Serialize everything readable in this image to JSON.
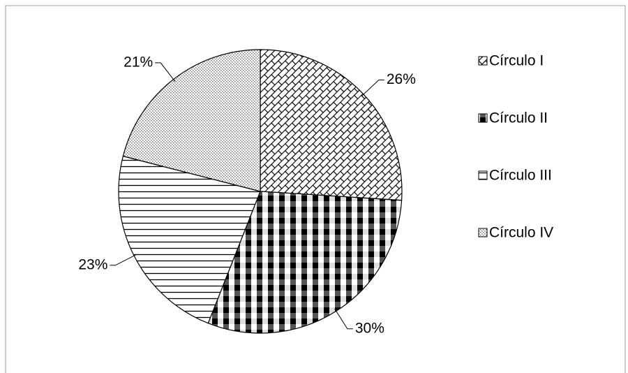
{
  "chart_data": {
    "type": "pie",
    "categories": [
      "Círculo I",
      "Círculo II",
      "Círculo III",
      "Círculo IV"
    ],
    "values": [
      26,
      30,
      23,
      21
    ],
    "value_labels": [
      "26%",
      "30%",
      "23%",
      "21%"
    ],
    "legend": "right"
  }
}
